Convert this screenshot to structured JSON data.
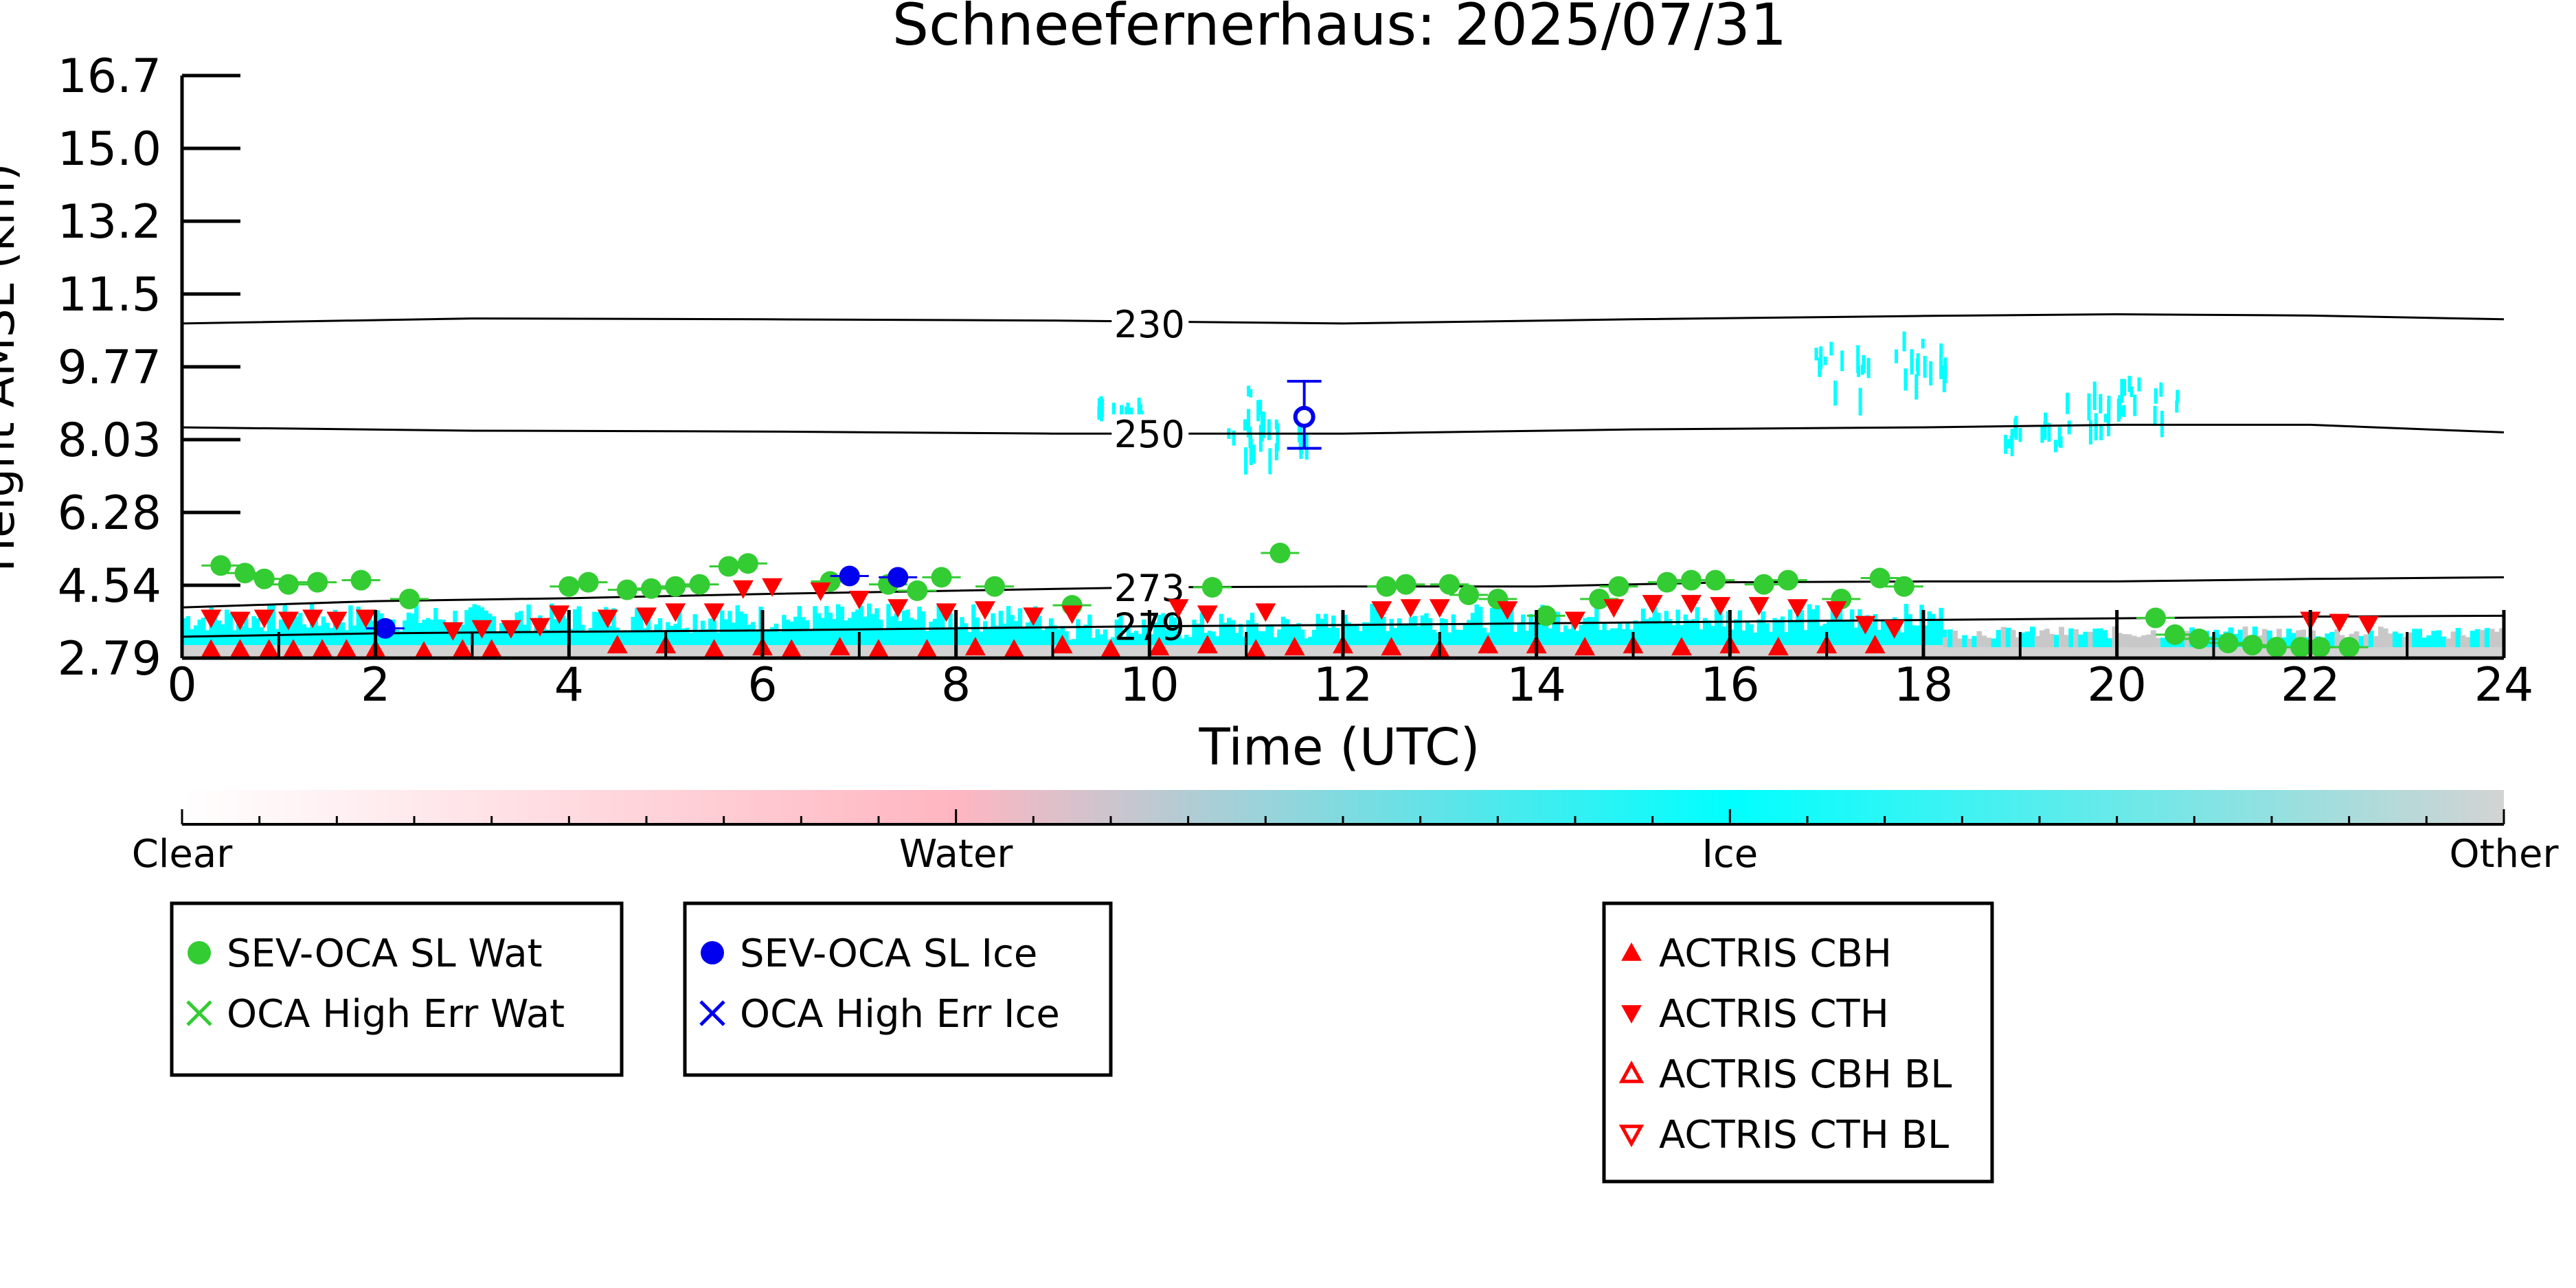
{
  "chart_data": {
    "type": "scatter",
    "title": "Schneefernerhaus: 2025/07/31",
    "xlabel": "Time (UTC)",
    "ylabel": "Height AMSL (km)",
    "xlim": [
      0,
      24
    ],
    "ylim": [
      2.79,
      16.7
    ],
    "x_ticks": [
      "0",
      "2",
      "4",
      "6",
      "8",
      "10",
      "12",
      "14",
      "16",
      "18",
      "20",
      "22",
      "24"
    ],
    "y_ticks": [
      "2.79",
      "4.54",
      "6.28",
      "8.03",
      "9.77",
      "11.5",
      "13.2",
      "15.0",
      "16.7"
    ],
    "grid": false,
    "colorbar": {
      "labels": [
        "Clear",
        "Water",
        "Ice",
        "Other"
      ],
      "colors": [
        "#ffffff",
        "#ffb6c1",
        "#00ffff",
        "#d3d3d3"
      ]
    },
    "contours": [
      {
        "label": "230",
        "label_x": 10.0,
        "x": [
          0,
          3,
          6,
          9,
          12,
          15,
          18,
          20,
          22,
          24
        ],
        "y": [
          10.78,
          10.9,
          10.88,
          10.85,
          10.78,
          10.88,
          10.96,
          11.0,
          10.97,
          10.88
        ]
      },
      {
        "label": "250",
        "label_x": 10.0,
        "x": [
          0,
          3,
          6,
          9,
          12,
          15,
          18,
          20,
          22,
          24
        ],
        "y": [
          8.3,
          8.22,
          8.2,
          8.15,
          8.15,
          8.25,
          8.3,
          8.36,
          8.36,
          8.18
        ]
      },
      {
        "label": "273",
        "label_x": 10.0,
        "x": [
          0,
          2,
          4,
          6,
          8,
          10,
          12,
          14,
          16,
          18,
          20,
          22,
          24
        ],
        "y": [
          4.0,
          4.15,
          4.22,
          4.32,
          4.4,
          4.48,
          4.5,
          4.5,
          4.6,
          4.62,
          4.62,
          4.68,
          4.72
        ]
      },
      {
        "label": "279",
        "label_x": 10.0,
        "x": [
          0,
          2,
          4,
          6,
          8,
          10,
          12,
          14,
          16,
          18,
          20,
          22,
          24
        ],
        "y": [
          3.3,
          3.38,
          3.42,
          3.45,
          3.5,
          3.55,
          3.58,
          3.62,
          3.66,
          3.7,
          3.74,
          3.78,
          3.8
        ]
      }
    ],
    "series": [
      {
        "name": "SEV-OCA SL Wat",
        "marker": "circle",
        "color": "#33cc33",
        "x": [
          0.4,
          0.65,
          0.85,
          1.1,
          1.4,
          1.85,
          2.35,
          4.0,
          4.2,
          4.6,
          4.85,
          5.1,
          5.35,
          5.65,
          5.85,
          6.7,
          7.3,
          7.6,
          7.85,
          8.4,
          9.2,
          10.65,
          11.35,
          12.45,
          12.65,
          13.1,
          13.3,
          13.6,
          14.1,
          14.65,
          14.85,
          15.35,
          15.6,
          15.85,
          16.35,
          16.6,
          17.15,
          17.55,
          17.8,
          20.4,
          20.6,
          20.85,
          21.15,
          21.4,
          21.65,
          21.9,
          22.1,
          22.4
        ],
        "y": [
          5.0,
          4.82,
          4.68,
          4.55,
          4.6,
          4.65,
          4.2,
          4.5,
          4.6,
          4.42,
          4.45,
          4.5,
          4.55,
          4.98,
          5.05,
          4.62,
          4.55,
          4.4,
          4.72,
          4.5,
          4.05,
          4.48,
          5.3,
          4.5,
          4.55,
          4.55,
          4.3,
          4.2,
          3.8,
          4.2,
          4.5,
          4.6,
          4.65,
          4.65,
          4.55,
          4.65,
          4.2,
          4.7,
          4.5,
          3.75,
          3.35,
          3.25,
          3.15,
          3.1,
          3.05,
          3.05,
          3.05,
          3.05
        ]
      },
      {
        "name": "OCA High Err Wat",
        "marker": "x",
        "color": "#33cc33",
        "x": [],
        "y": []
      },
      {
        "name": "SEV-OCA SL Ice",
        "marker": "circle",
        "color": "#0000ee",
        "x": [
          2.1,
          6.9,
          7.4
        ],
        "y": [
          3.5,
          4.75,
          4.72
        ]
      },
      {
        "name": "OCA High Err Ice",
        "marker": "x",
        "color": "#0000ee",
        "x": [],
        "y": []
      },
      {
        "name": "ACTRIS CBH",
        "marker": "triangle-up",
        "color": "#ff0000",
        "x": [
          0.3,
          0.6,
          0.9,
          1.15,
          1.45,
          1.7,
          2.0,
          2.5,
          2.9,
          3.2,
          4.5,
          5.0,
          5.5,
          6.0,
          6.3,
          6.8,
          7.2,
          7.7,
          8.2,
          8.6,
          9.1,
          9.6,
          10.1,
          10.6,
          11.1,
          11.5,
          12.0,
          12.5,
          13.0,
          13.5,
          14.0,
          14.5,
          15.0,
          15.5,
          16.0,
          16.5,
          17.0,
          17.5
        ],
        "y": [
          3.0,
          3.0,
          3.0,
          3.0,
          3.0,
          3.0,
          3.0,
          2.95,
          3.0,
          3.0,
          3.1,
          3.1,
          3.0,
          3.05,
          3.0,
          3.05,
          3.0,
          3.0,
          3.05,
          3.0,
          3.1,
          3.0,
          3.05,
          3.1,
          3.0,
          3.05,
          3.1,
          3.05,
          3.0,
          3.1,
          3.1,
          3.05,
          3.1,
          3.05,
          3.1,
          3.05,
          3.1,
          3.1
        ]
      },
      {
        "name": "ACTRIS CTH",
        "marker": "triangle-down",
        "color": "#ff0000",
        "x": [
          0.3,
          0.6,
          0.85,
          1.1,
          1.35,
          1.6,
          1.9,
          2.8,
          3.1,
          3.4,
          3.7,
          3.9,
          4.4,
          4.8,
          5.1,
          5.5,
          5.8,
          6.1,
          6.6,
          7.0,
          7.4,
          7.9,
          8.3,
          8.8,
          9.2,
          10.3,
          10.6,
          11.2,
          12.4,
          12.7,
          13.0,
          13.7,
          14.4,
          14.8,
          15.2,
          15.6,
          15.9,
          16.3,
          16.7,
          17.1,
          17.4,
          17.7,
          22.0,
          22.3,
          22.6
        ],
        "y": [
          3.75,
          3.7,
          3.75,
          3.7,
          3.75,
          3.7,
          3.75,
          3.45,
          3.5,
          3.5,
          3.55,
          3.85,
          3.75,
          3.8,
          3.9,
          3.9,
          4.45,
          4.5,
          4.4,
          4.2,
          4.0,
          3.9,
          3.95,
          3.8,
          3.85,
          4.0,
          3.85,
          3.9,
          3.95,
          4.0,
          4.0,
          3.95,
          3.7,
          4.0,
          4.1,
          4.1,
          4.05,
          4.05,
          4.0,
          3.95,
          3.6,
          3.5,
          3.7,
          3.65,
          3.6
        ]
      },
      {
        "name": "ACTRIS CBH BL",
        "marker": "triangle-up-open",
        "color": "#ff0000",
        "x": [],
        "y": []
      },
      {
        "name": "ACTRIS CTH BL",
        "marker": "triangle-down-open",
        "color": "#ff0000",
        "x": [],
        "y": []
      }
    ],
    "error_points": [
      {
        "x": 11.6,
        "y": 8.55,
        "yerr_low": 0.75,
        "yerr_high": 0.85,
        "color": "#0000ee",
        "open": true
      }
    ],
    "legends": [
      {
        "entries": [
          "SEV-OCA SL Wat",
          "OCA High Err Wat"
        ]
      },
      {
        "entries": [
          "SEV-OCA SL Ice",
          "OCA High Err Ice"
        ]
      },
      {
        "entries": [
          "ACTRIS CBH",
          "ACTRIS CTH",
          "ACTRIS CBH BL",
          "ACTRIS CTH BL"
        ]
      }
    ]
  }
}
